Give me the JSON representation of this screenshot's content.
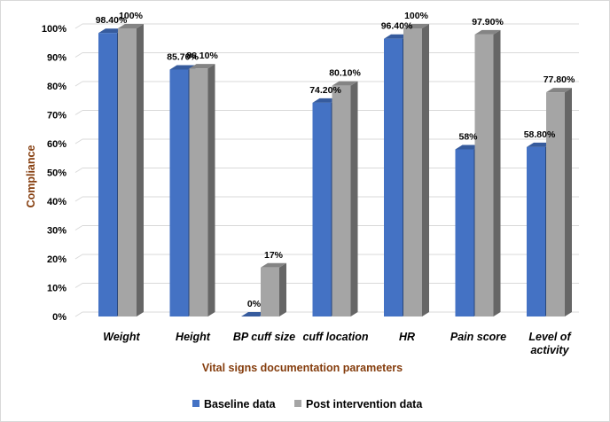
{
  "chart_data": {
    "type": "bar",
    "categories": [
      [
        "Weight"
      ],
      [
        "Height"
      ],
      [
        "BP cuff size"
      ],
      [
        "cuff location"
      ],
      [
        "HR"
      ],
      [
        "Pain score"
      ],
      [
        "Level of",
        "activity"
      ]
    ],
    "series": [
      {
        "name": "Baseline data",
        "color": "#4472c4",
        "values": [
          98.4,
          85.7,
          0,
          74.2,
          96.4,
          58,
          58.8
        ],
        "labels": [
          "98.40%",
          "85.70%",
          "0%",
          "74.20%",
          "96.40%",
          "58%",
          "58.80%"
        ]
      },
      {
        "name": "Post intervention data",
        "color": "#a5a5a5",
        "values": [
          100,
          86.1,
          17,
          80.1,
          100,
          97.9,
          77.8
        ],
        "labels": [
          "100%",
          "86.10%",
          "17%",
          "80.10%",
          "100%",
          "97.90%",
          "77.80%"
        ]
      }
    ],
    "yticks": [
      "0%",
      "10%",
      "20%",
      "30%",
      "40%",
      "50%",
      "60%",
      "70%",
      "80%",
      "90%",
      "100%"
    ],
    "ylim": [
      0,
      100
    ],
    "xlabel": "Vital signs documentation parameters",
    "ylabel": "Compliance",
    "legend_position": "bottom",
    "grid": true,
    "style": "3d-column"
  }
}
